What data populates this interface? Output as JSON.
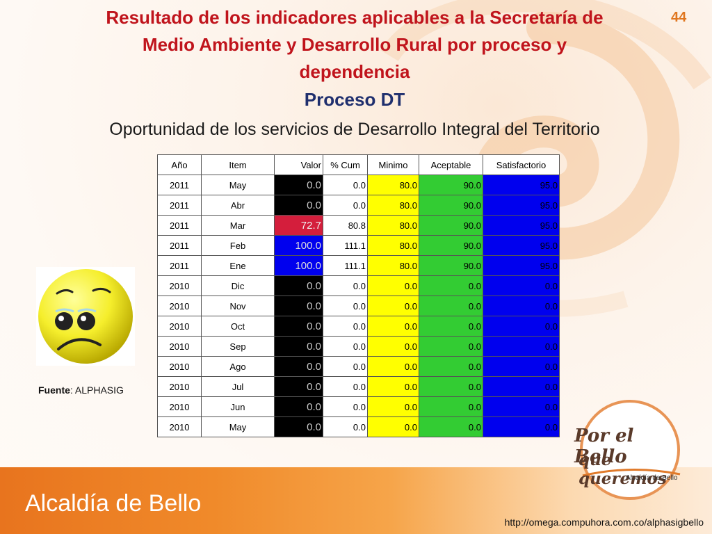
{
  "page_number": "44",
  "title_lines": [
    "Resultado de los indicadores aplicables a la Secretaría de",
    "Medio Ambiente y Desarrollo Rural  por proceso y",
    "dependencia"
  ],
  "subtitle": "Proceso DT",
  "heading": "Oportunidad de los servicios de Desarrollo Integral del Territorio",
  "table": {
    "headers": [
      "Año",
      "Item",
      "Valor",
      "% Cum",
      "Minimo",
      "Aceptable",
      "Satisfactorio"
    ],
    "rows": [
      {
        "year": "2011",
        "item": "May",
        "valor": "0.0",
        "valor_color": "black",
        "cum": "0.0",
        "minimo": "80.0",
        "aceptable": "90.0",
        "satisfactorio": "95.0"
      },
      {
        "year": "2011",
        "item": "Abr",
        "valor": "0.0",
        "valor_color": "black",
        "cum": "0.0",
        "minimo": "80.0",
        "aceptable": "90.0",
        "satisfactorio": "95.0"
      },
      {
        "year": "2011",
        "item": "Mar",
        "valor": "72.7",
        "valor_color": "red",
        "cum": "80.8",
        "minimo": "80.0",
        "aceptable": "90.0",
        "satisfactorio": "95.0"
      },
      {
        "year": "2011",
        "item": "Feb",
        "valor": "100.0",
        "valor_color": "blue",
        "cum": "111.1",
        "minimo": "80.0",
        "aceptable": "90.0",
        "satisfactorio": "95.0"
      },
      {
        "year": "2011",
        "item": "Ene",
        "valor": "100.0",
        "valor_color": "blue",
        "cum": "111.1",
        "minimo": "80.0",
        "aceptable": "90.0",
        "satisfactorio": "95.0"
      },
      {
        "year": "2010",
        "item": "Dic",
        "valor": "0.0",
        "valor_color": "black",
        "cum": "0.0",
        "minimo": "0.0",
        "aceptable": "0.0",
        "satisfactorio": "0.0"
      },
      {
        "year": "2010",
        "item": "Nov",
        "valor": "0.0",
        "valor_color": "black",
        "cum": "0.0",
        "minimo": "0.0",
        "aceptable": "0.0",
        "satisfactorio": "0.0"
      },
      {
        "year": "2010",
        "item": "Oct",
        "valor": "0.0",
        "valor_color": "black",
        "cum": "0.0",
        "minimo": "0.0",
        "aceptable": "0.0",
        "satisfactorio": "0.0"
      },
      {
        "year": "2010",
        "item": "Sep",
        "valor": "0.0",
        "valor_color": "black",
        "cum": "0.0",
        "minimo": "0.0",
        "aceptable": "0.0",
        "satisfactorio": "0.0"
      },
      {
        "year": "2010",
        "item": "Ago",
        "valor": "0.0",
        "valor_color": "black",
        "cum": "0.0",
        "minimo": "0.0",
        "aceptable": "0.0",
        "satisfactorio": "0.0"
      },
      {
        "year": "2010",
        "item": "Jul",
        "valor": "0.0",
        "valor_color": "black",
        "cum": "0.0",
        "minimo": "0.0",
        "aceptable": "0.0",
        "satisfactorio": "0.0"
      },
      {
        "year": "2010",
        "item": "Jun",
        "valor": "0.0",
        "valor_color": "black",
        "cum": "0.0",
        "minimo": "0.0",
        "aceptable": "0.0",
        "satisfactorio": "0.0"
      },
      {
        "year": "2010",
        "item": "May",
        "valor": "0.0",
        "valor_color": "black",
        "cum": "0.0",
        "minimo": "0.0",
        "aceptable": "0.0",
        "satisfactorio": "0.0"
      }
    ]
  },
  "source": {
    "label": "Fuente",
    "value": ": ALPHASIG"
  },
  "face_icon": "sad-face-icon",
  "logo": {
    "line1": "Por el Bello",
    "line2": "que queremos",
    "line3": "Alcaldía de Bello"
  },
  "footer": {
    "brand": "Alcaldía de Bello",
    "url": "http://omega.compuhora.com.co/alphasigbello"
  },
  "colors": {
    "title": "#c0141c",
    "subtitle": "#1f2f6e",
    "minimo": "#ffff00",
    "aceptable": "#33cc33",
    "satisfactorio": "#0000ee",
    "footer": "#e8741e"
  }
}
